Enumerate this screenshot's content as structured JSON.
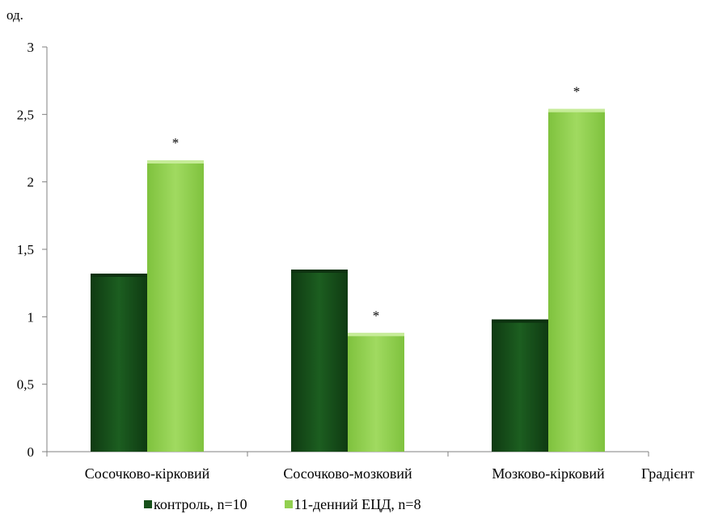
{
  "chart_data": {
    "type": "bar",
    "title": "",
    "ylabel": "од.",
    "xlabel": "Градієнт",
    "ylim": [
      0,
      3
    ],
    "yticks": [
      0,
      0.5,
      1,
      1.5,
      2,
      2.5,
      3
    ],
    "ytick_labels": [
      "0",
      "0,5",
      "1",
      "1,5",
      "2",
      "2,5",
      "3"
    ],
    "categories": [
      "Сосочково-кірковий",
      "Сосочково-мозковий",
      "Мозково-кірковий"
    ],
    "series": [
      {
        "name": "контроль, n=10",
        "values": [
          1.32,
          1.35,
          0.98
        ],
        "color": "#17501a",
        "annotations": [
          "",
          "",
          ""
        ]
      },
      {
        "name": "11-денний ЕЦД, n=8",
        "values": [
          2.16,
          0.88,
          2.54
        ],
        "color": "#92d050",
        "annotations": [
          "*",
          "*",
          "*"
        ]
      }
    ],
    "grid": false,
    "legend_position": "bottom"
  }
}
